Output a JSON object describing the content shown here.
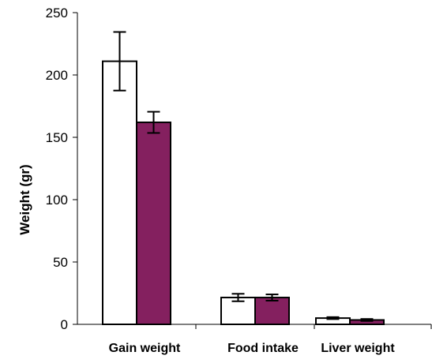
{
  "chart_data": {
    "type": "bar",
    "title": "",
    "xlabel": "",
    "ylabel": "Weight (gr)",
    "ylim": [
      0,
      250
    ],
    "yticks": [
      0,
      50,
      100,
      150,
      200,
      250
    ],
    "categories": [
      "Gain weight",
      "Food intake",
      "Liver weight"
    ],
    "series": [
      {
        "color": "#ffffff",
        "values": [
          211,
          21.5,
          5
        ],
        "errors": [
          23.5,
          3,
          0.8
        ]
      },
      {
        "color": "#84205f",
        "values": [
          162,
          21.5,
          3.5
        ],
        "errors": [
          8.5,
          2.5,
          0.8
        ]
      }
    ],
    "grid": false,
    "legend": "none"
  }
}
